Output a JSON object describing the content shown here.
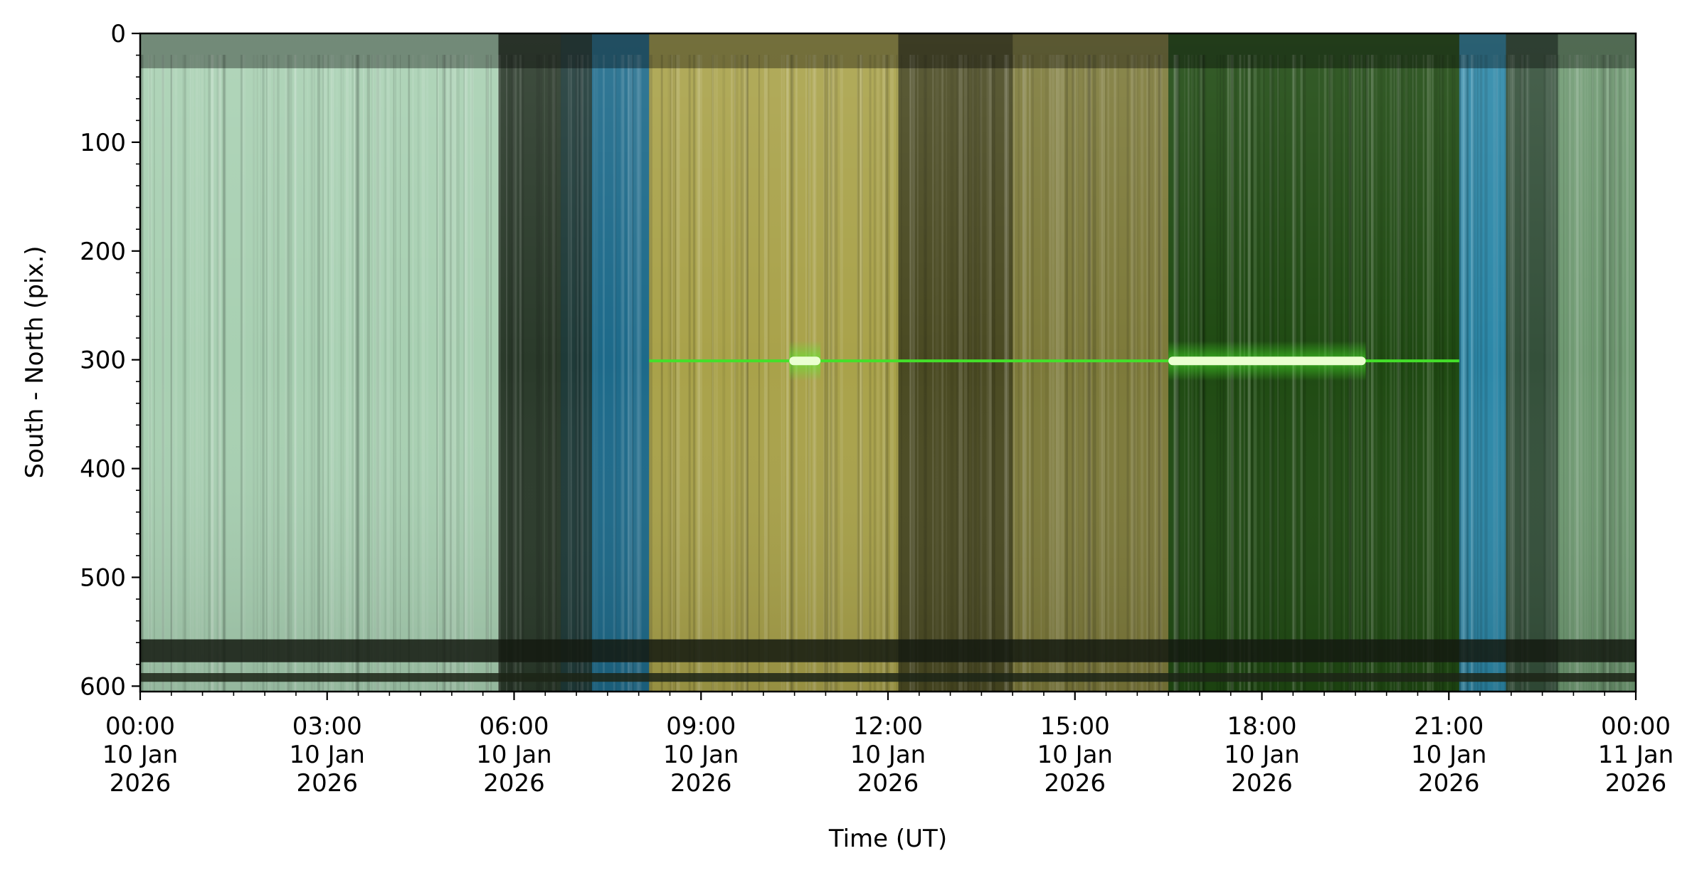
{
  "chart_data": {
    "type": "heatmap",
    "title": "",
    "xlabel": "Time (UT)",
    "ylabel": "South - North (pix.)",
    "ylim": [
      0,
      605
    ],
    "y_inverted": true,
    "y_ticks": [
      0,
      100,
      200,
      300,
      400,
      500,
      600
    ],
    "x_range": [
      "2026-01-10T00:00",
      "2026-01-11T00:00"
    ],
    "x_ticks": [
      {
        "time": "00:00",
        "date": "10 Jan",
        "year": "2026"
      },
      {
        "time": "03:00",
        "date": "10 Jan",
        "year": "2026"
      },
      {
        "time": "06:00",
        "date": "10 Jan",
        "year": "2026"
      },
      {
        "time": "09:00",
        "date": "10 Jan",
        "year": "2026"
      },
      {
        "time": "12:00",
        "date": "10 Jan",
        "year": "2026"
      },
      {
        "time": "15:00",
        "date": "10 Jan",
        "year": "2026"
      },
      {
        "time": "18:00",
        "date": "10 Jan",
        "year": "2026"
      },
      {
        "time": "21:00",
        "date": "10 Jan",
        "year": "2026"
      },
      {
        "time": "00:00",
        "date": "11 Jan",
        "year": "2026"
      }
    ],
    "color_bands": [
      {
        "start": "00:00",
        "end": "05:45",
        "color": "#a8d0b2"
      },
      {
        "start": "05:45",
        "end": "06:45",
        "color": "#2a3a2a"
      },
      {
        "start": "06:45",
        "end": "07:15",
        "color": "#1e3a38"
      },
      {
        "start": "07:15",
        "end": "08:10",
        "color": "#1d6a8a"
      },
      {
        "start": "08:10",
        "end": "12:10",
        "color": "#a9a24a"
      },
      {
        "start": "12:10",
        "end": "14:00",
        "color": "#4a4a22"
      },
      {
        "start": "14:00",
        "end": "16:30",
        "color": "#7d7a3a"
      },
      {
        "start": "16:30",
        "end": "21:10",
        "color": "#1f4a12"
      },
      {
        "start": "21:10",
        "end": "21:55",
        "color": "#2c88a8"
      },
      {
        "start": "21:55",
        "end": "22:45",
        "color": "#34503a"
      },
      {
        "start": "22:45",
        "end": "24:00",
        "color": "#6f9a72"
      }
    ],
    "highlights": [
      {
        "kind": "horizontal-line",
        "start": "08:10",
        "end": "21:10",
        "y": 301,
        "color": "#44e02a"
      },
      {
        "kind": "bright-segment",
        "start": "16:30",
        "end": "19:40",
        "y": 301,
        "color": "#eaffd0"
      },
      {
        "kind": "bright-segment",
        "start": "10:25",
        "end": "10:55",
        "y": 301,
        "color": "#eaffd0"
      },
      {
        "kind": "dark-band",
        "start": "00:00",
        "end": "24:00",
        "y0": 557,
        "y1": 578,
        "color": "#141a10"
      },
      {
        "kind": "dark-band",
        "start": "00:00",
        "end": "24:00",
        "y0": 588,
        "y1": 596,
        "color": "#1c2416"
      }
    ]
  }
}
